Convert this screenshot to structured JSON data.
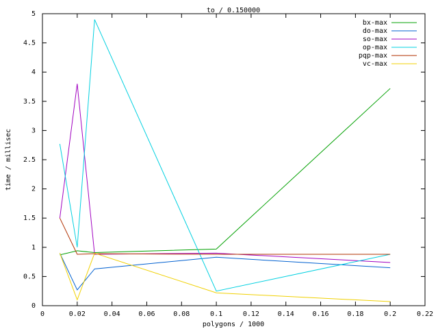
{
  "chart_data": {
    "type": "line",
    "title": "to / 0.150000",
    "x_label": "polygons / 1000",
    "y_label": "time / millisec",
    "x": [
      0.01,
      0.02,
      0.03,
      0.1,
      0.2
    ],
    "series": [
      {
        "name": "bx-max",
        "color": "#00a000",
        "values": [
          0.87,
          0.94,
          0.91,
          0.97,
          3.72
        ]
      },
      {
        "name": "do-max",
        "color": "#0060d0",
        "values": [
          0.9,
          0.27,
          0.63,
          0.83,
          0.65
        ]
      },
      {
        "name": "so-max",
        "color": "#a000c0",
        "values": [
          1.5,
          3.8,
          0.88,
          0.9,
          0.74
        ]
      },
      {
        "name": "op-max",
        "color": "#00d0e0",
        "values": [
          2.77,
          1.0,
          4.9,
          0.25,
          0.88
        ]
      },
      {
        "name": "pqp-max",
        "color": "#b03000",
        "values": [
          1.5,
          0.88,
          0.89,
          0.88,
          0.88
        ]
      },
      {
        "name": "vc-max",
        "color": "#f0d000",
        "values": [
          0.9,
          0.1,
          0.9,
          0.22,
          0.07
        ]
      }
    ],
    "xlim": [
      0,
      0.22
    ],
    "xticks": [
      0,
      0.02,
      0.04,
      0.06,
      0.08,
      0.1,
      0.12,
      0.14,
      0.16,
      0.18,
      0.2,
      0.22
    ],
    "ylim": [
      0,
      5
    ],
    "yticks": [
      0,
      0.5,
      1,
      1.5,
      2,
      2.5,
      3,
      3.5,
      4,
      4.5,
      5
    ],
    "grid": false,
    "legend": "top-right"
  }
}
